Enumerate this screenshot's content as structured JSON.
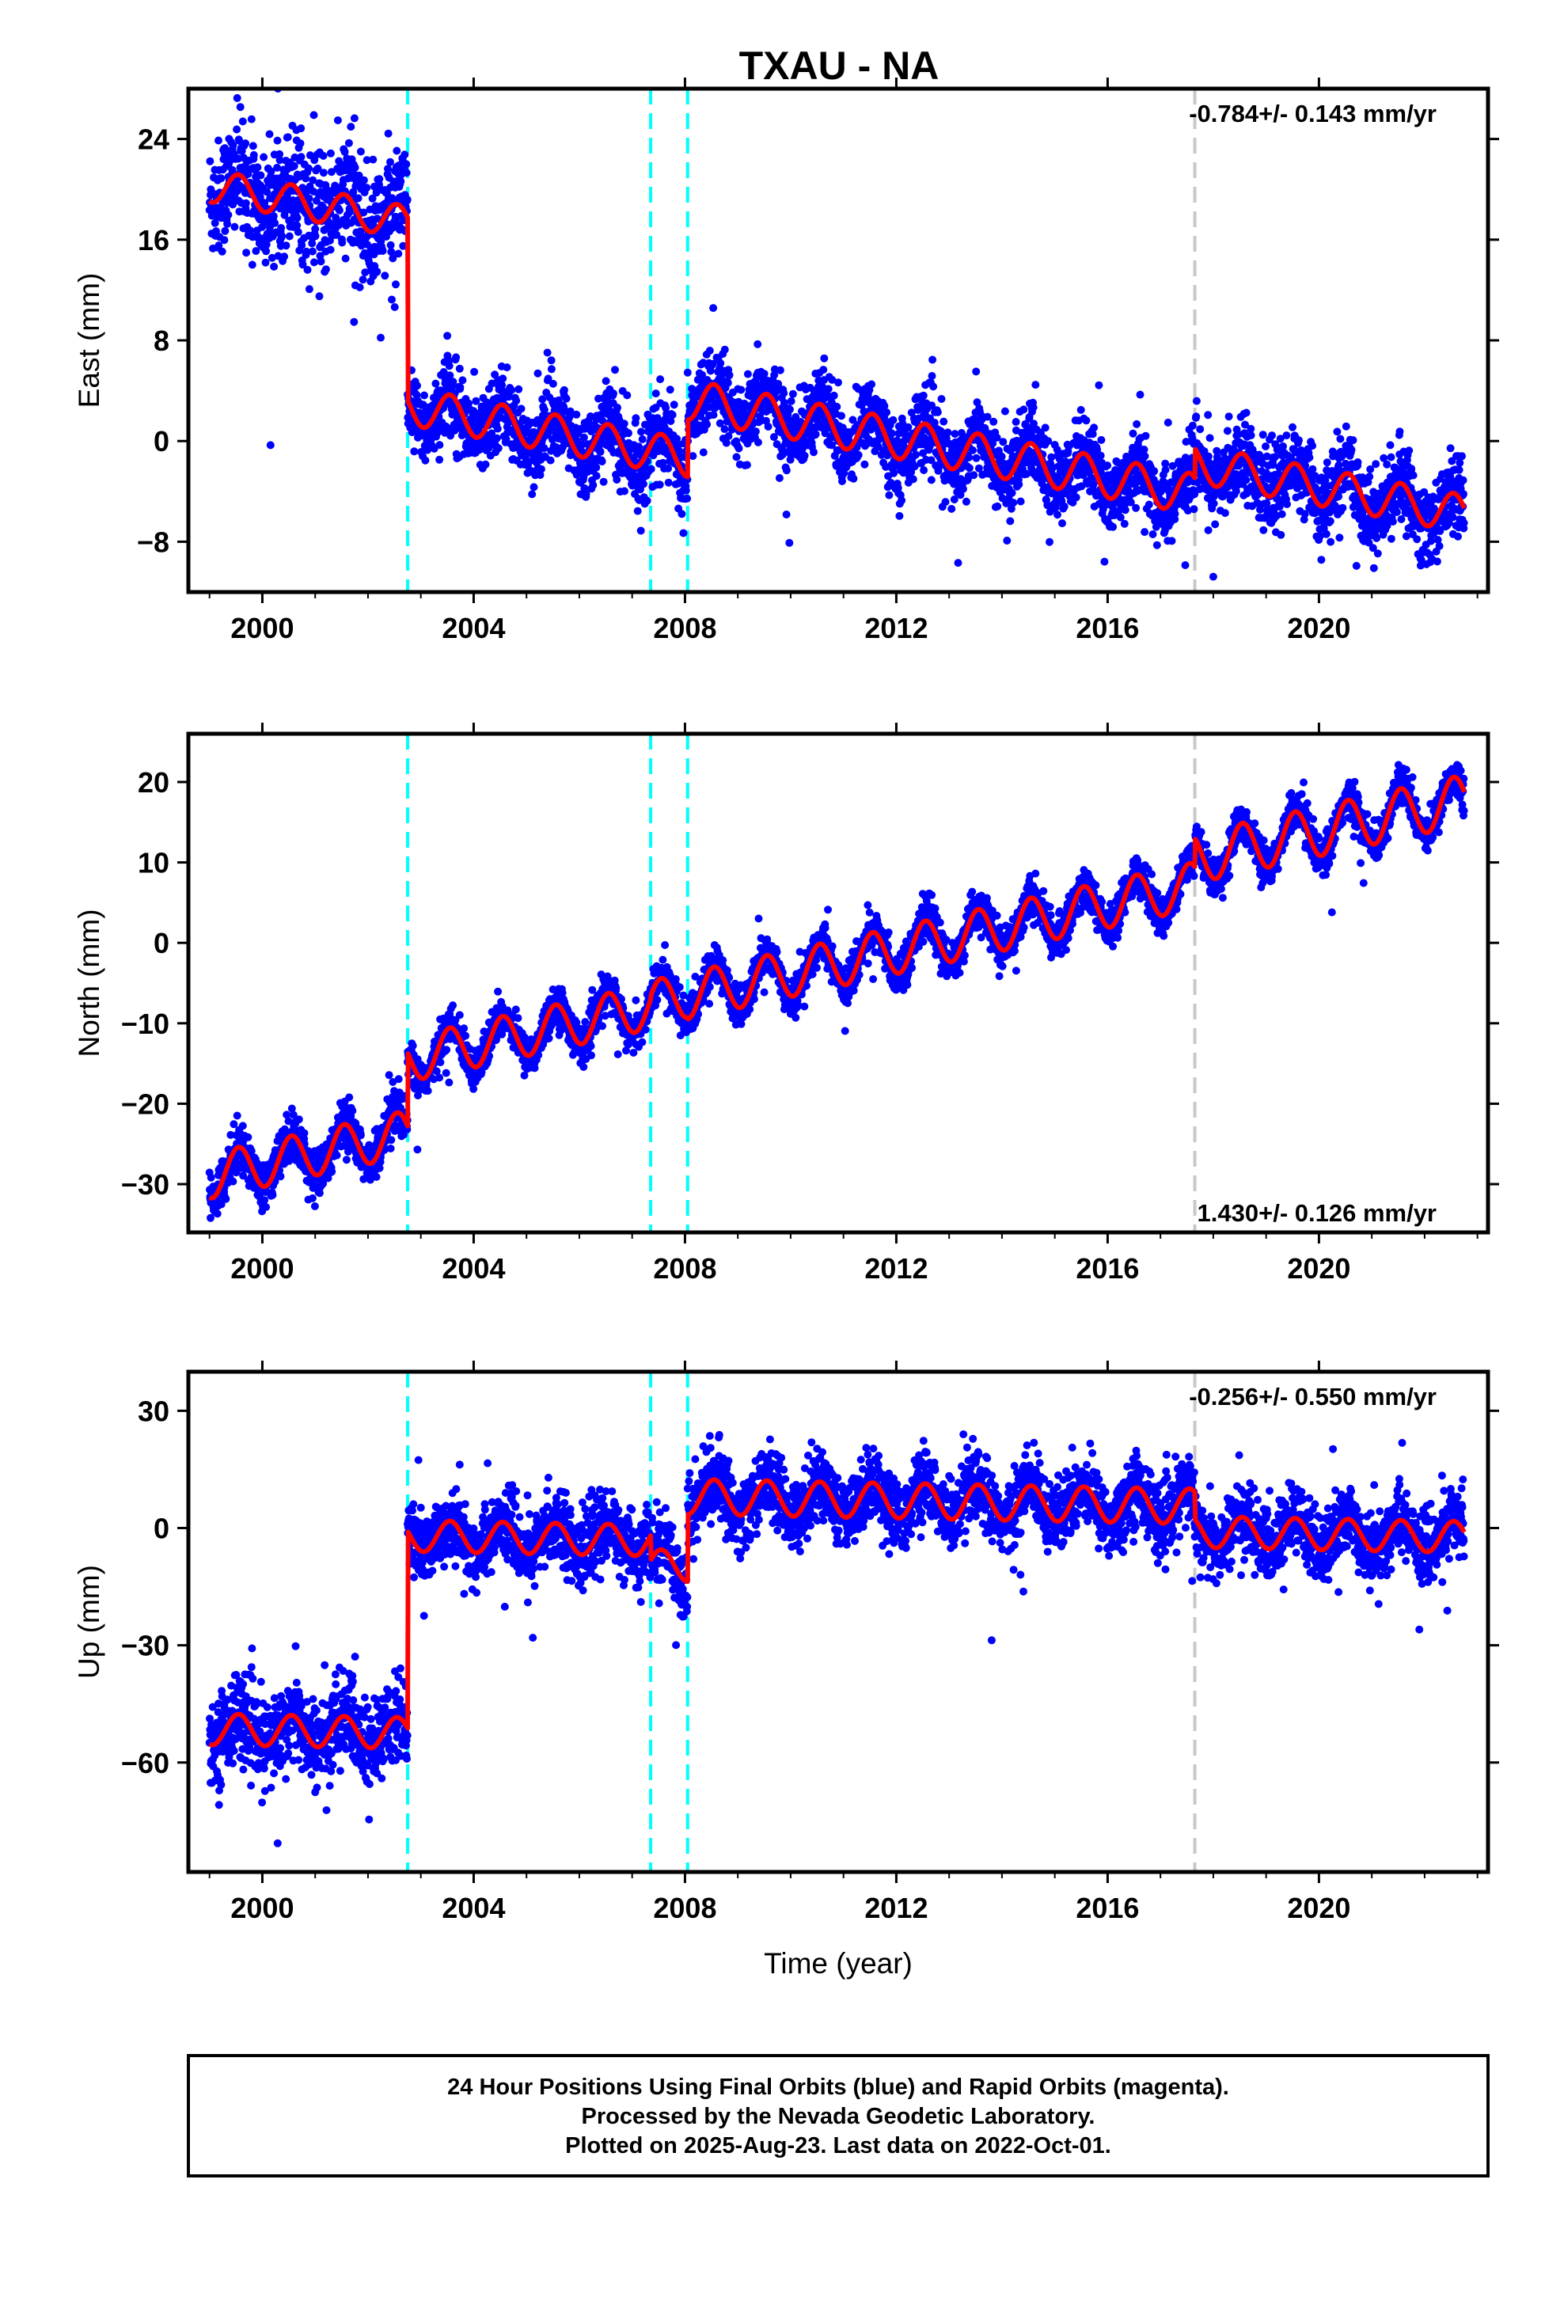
{
  "chart_data": {
    "type": "scatter",
    "title": "TXAU - NA",
    "xlabel": "Time (year)",
    "x_range": [
      1998.6,
      2023.2
    ],
    "x_ticks": [
      2000,
      2004,
      2008,
      2012,
      2016,
      2020
    ],
    "colors": {
      "points": "#0000ff",
      "model": "#ff0000",
      "equipment_change": "#00ffff",
      "event": "#c8c8c8"
    },
    "series_names": [
      "24 Hour Positions (Final Orbits)",
      "Model fit"
    ],
    "data_span": [
      1999.0,
      2022.75
    ],
    "steps": [
      {
        "year": 2002.75,
        "kind": "equipment_change"
      },
      {
        "year": 2007.35,
        "kind": "equipment_change"
      },
      {
        "year": 2008.05,
        "kind": "equipment_change"
      },
      {
        "year": 2017.65,
        "kind": "event"
      }
    ],
    "panels": [
      {
        "component": "East",
        "ylabel": "East (mm)",
        "y_range": [
          -12,
          28
        ],
        "y_ticks": [
          24,
          16,
          8,
          0,
          -8
        ],
        "rate_text": "-0.784+/- 0.143 mm/yr",
        "rate_position": "top-right",
        "segments": [
          {
            "start": 1999.0,
            "end": 2002.75,
            "value_at_start": 20.3,
            "slope": -0.784,
            "annual_amplitude": 1.3,
            "noise": 2.3
          },
          {
            "start": 2002.75,
            "end": 2007.35,
            "value_at_start": 2.8,
            "slope": -0.784,
            "annual_amplitude": 1.5,
            "noise": 1.5
          },
          {
            "start": 2007.35,
            "end": 2008.05,
            "value_at_start": -0.8,
            "slope": -0.784,
            "annual_amplitude": 1.5,
            "noise": 1.5
          },
          {
            "start": 2008.05,
            "end": 2017.65,
            "value_at_start": 3.3,
            "slope": -0.784,
            "annual_amplitude": 1.6,
            "noise": 1.5
          },
          {
            "start": 2017.65,
            "end": 2022.75,
            "value_at_start": -1.8,
            "slope": -0.784,
            "annual_amplitude": 1.5,
            "noise": 1.5
          }
        ]
      },
      {
        "component": "North",
        "ylabel": "North (mm)",
        "y_range": [
          -36,
          26
        ],
        "y_ticks": [
          20,
          10,
          0,
          -10,
          -20,
          -30
        ],
        "rate_text": "1.430+/- 0.126 mm/yr",
        "rate_position": "bottom-right",
        "segments": [
          {
            "start": 1999.0,
            "end": 2002.75,
            "value_at_start": -29.0,
            "slope": 1.43,
            "annual_amplitude": 2.8,
            "noise": 1.5
          },
          {
            "start": 2002.75,
            "end": 2007.35,
            "value_at_start": -14.5,
            "slope": 1.43,
            "annual_amplitude": 2.8,
            "noise": 1.2
          },
          {
            "start": 2007.35,
            "end": 2008.05,
            "value_at_start": -7.5,
            "slope": 1.43,
            "annual_amplitude": 2.8,
            "noise": 1.2
          },
          {
            "start": 2008.05,
            "end": 2017.65,
            "value_at_start": -6.6,
            "slope": 1.43,
            "annual_amplitude": 2.9,
            "noise": 1.2
          },
          {
            "start": 2017.65,
            "end": 2022.75,
            "value_at_start": 10.5,
            "slope": 1.43,
            "annual_amplitude": 3.1,
            "noise": 1.2
          }
        ]
      },
      {
        "component": "Up",
        "ylabel": "Up (mm)",
        "y_range": [
          -88,
          40
        ],
        "y_ticks": [
          30,
          0,
          -30,
          -60
        ],
        "rate_text": "-0.256+/- 0.550 mm/yr",
        "rate_position": "top-right",
        "segments": [
          {
            "start": 1999.0,
            "end": 2002.75,
            "value_at_start": -51.5,
            "slope": -0.256,
            "annual_amplitude": 4.0,
            "noise": 5.5
          },
          {
            "start": 2002.75,
            "end": 2007.35,
            "value_at_start": -2.0,
            "slope": -0.256,
            "annual_amplitude": 4.0,
            "noise": 4.5
          },
          {
            "start": 2007.35,
            "end": 2008.05,
            "value_at_start": -9.5,
            "slope": -0.256,
            "annual_amplitude": 4.0,
            "noise": 4.5
          },
          {
            "start": 2008.05,
            "end": 2017.65,
            "value_at_start": 8.0,
            "slope": -0.256,
            "annual_amplitude": 4.5,
            "noise": 4.5
          },
          {
            "start": 2017.65,
            "end": 2022.75,
            "value_at_start": -1.0,
            "slope": -0.256,
            "annual_amplitude": 4.0,
            "noise": 4.5
          }
        ]
      }
    ],
    "notes": [
      "24 Hour Positions Using Final Orbits (blue) and Rapid Orbits (magenta).",
      "Processed by the Nevada Geodetic Laboratory.",
      "Plotted on 2025-Aug-23. Last data on 2022-Oct-01."
    ]
  }
}
